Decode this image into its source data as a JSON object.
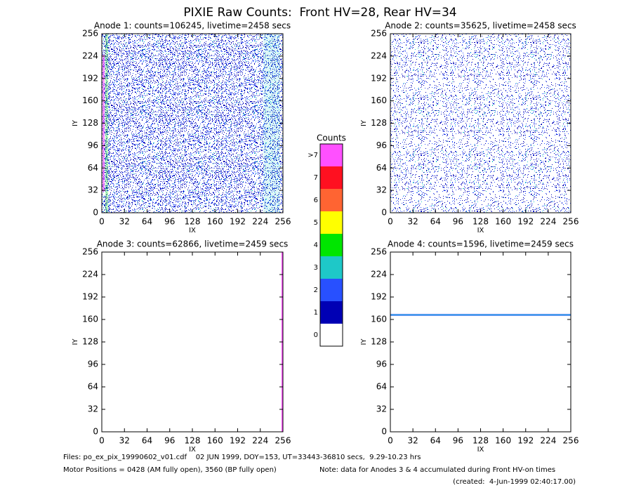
{
  "title": "PIXIE Raw Counts:  Front HV=28, Rear HV=34",
  "chart_data": [
    {
      "type": "heatmap",
      "title": "Anode 1: counts=106245, livetime=2458 secs",
      "xlabel": "IX",
      "ylabel": "IY",
      "xlim": [
        0,
        256
      ],
      "ylim": [
        0,
        256
      ],
      "xticks": [
        0,
        32,
        64,
        96,
        128,
        160,
        192,
        224,
        256
      ],
      "yticks": [
        0,
        32,
        64,
        96,
        128,
        160,
        192,
        224,
        256
      ]
    },
    {
      "type": "heatmap",
      "title": "Anode 2: counts=35625, livetime=2458 secs",
      "xlabel": "IX",
      "ylabel": "IY",
      "xlim": [
        0,
        256
      ],
      "ylim": [
        0,
        256
      ],
      "xticks": [
        0,
        32,
        64,
        96,
        128,
        160,
        192,
        224,
        256
      ],
      "yticks": [
        0,
        32,
        64,
        96,
        128,
        160,
        192,
        224,
        256
      ]
    },
    {
      "type": "heatmap",
      "title": "Anode 3: counts=62866, livetime=2459 secs",
      "xlabel": "IX",
      "ylabel": "IY",
      "xlim": [
        0,
        256
      ],
      "ylim": [
        0,
        256
      ],
      "xticks": [
        0,
        32,
        64,
        96,
        128,
        160,
        192,
        224,
        256
      ],
      "yticks": [
        0,
        32,
        64,
        96,
        128,
        160,
        192,
        224,
        256
      ]
    },
    {
      "type": "heatmap",
      "title": "Anode 4: counts=1596, livetime=2459 secs",
      "xlabel": "IX",
      "ylabel": "IY",
      "xlim": [
        0,
        256
      ],
      "ylim": [
        0,
        256
      ],
      "xticks": [
        0,
        32,
        64,
        96,
        128,
        160,
        192,
        224,
        256
      ],
      "yticks": [
        0,
        32,
        64,
        96,
        128,
        160,
        192,
        224,
        256
      ]
    }
  ],
  "colorbar": {
    "title": "Counts",
    "labels": [
      "0",
      "1",
      "2",
      "3",
      "4",
      "5",
      "6",
      "7",
      ">7"
    ],
    "colors": [
      "#ffffff",
      "#0000b4",
      "#2850ff",
      "#1ec8c8",
      "#00e600",
      "#ffff00",
      "#ff6432",
      "#ff1020",
      "#ff50ff"
    ]
  },
  "footer": {
    "files": "Files: po_ex_pix_19990602_v01.cdf    02 JUN 1999, DOY=153, UT=33443-36810 secs,  9.29-10.23 hrs",
    "motor": "Motor Positions = 0428 (AM fully open), 3560 (BP fully open)",
    "note": "Note: data for Anodes 3 & 4 accumulated during Front HV-on times",
    "created": "(created:  4-Jun-1999 02:40:17.00)"
  }
}
